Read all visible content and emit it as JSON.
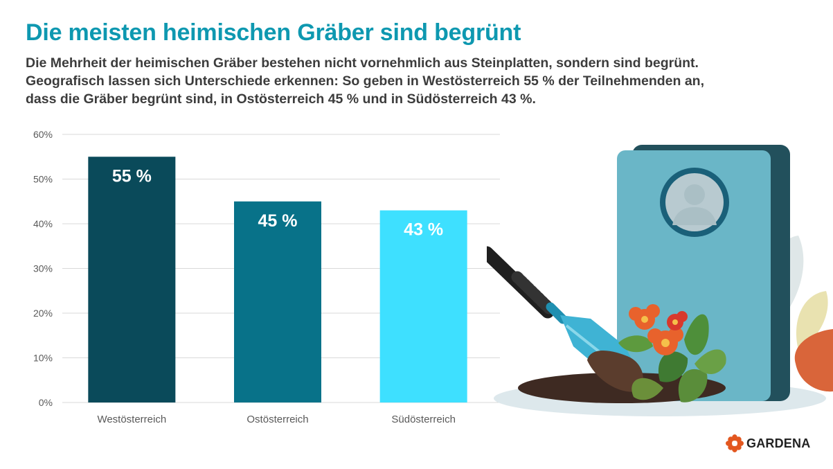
{
  "title": "Die meisten heimischen Gräber sind begrünt",
  "subtitle_lines": [
    "Die Mehrheit der heimischen Gräber bestehen nicht vornehmlich aus Steinplatten, sondern sind begrünt.",
    "Geografisch lassen sich Unterschiede erkennen: So geben in Westösterreich 55 % der Teilnehmenden an,",
    "dass die Gräber begrünt sind, in Ostösterreich 45 % und in Südösterreich 43 %."
  ],
  "brand": "GARDENA",
  "colors": {
    "title": "#0e98b0",
    "bars": [
      "#0a4a5a",
      "#087289",
      "#3ee0ff"
    ],
    "grid": "#d9d9d9",
    "tick": "#595959"
  },
  "chart_data": {
    "type": "bar",
    "title": "",
    "xlabel": "",
    "ylabel": "",
    "categories": [
      "Westösterreich",
      "Ostösterreich",
      "Südösterreich"
    ],
    "values": [
      55,
      45,
      43
    ],
    "value_labels": [
      "55 %",
      "45 %",
      "43 %"
    ],
    "y_ticks": [
      0,
      10,
      20,
      30,
      40,
      50,
      60
    ],
    "y_tick_labels": [
      "0%",
      "10%",
      "20%",
      "30%",
      "40%",
      "50%",
      "60%"
    ],
    "ylim": [
      0,
      60
    ],
    "grid": true
  }
}
